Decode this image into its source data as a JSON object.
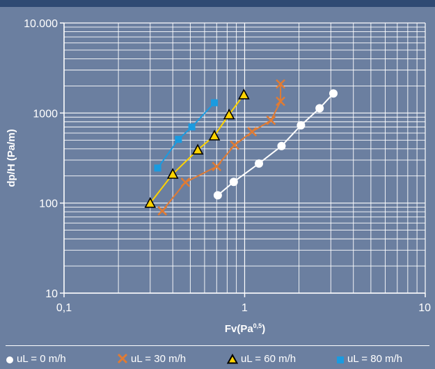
{
  "chart_data": {
    "type": "line",
    "xscale": "log",
    "yscale": "log",
    "xlim": [
      0.1,
      10
    ],
    "ylim": [
      10,
      10000
    ],
    "x_ticks": [
      {
        "value": 0.1,
        "label": "0,1"
      },
      {
        "value": 1,
        "label": "1"
      },
      {
        "value": 10,
        "label": "10"
      }
    ],
    "y_ticks": [
      {
        "value": 10,
        "label": "10"
      },
      {
        "value": 100,
        "label": "100"
      },
      {
        "value": 1000,
        "label": "1000"
      },
      {
        "value": 10000,
        "label": "10.000"
      }
    ],
    "xlabel": "Fv(Pa",
    "xlabel_sup": "0,5",
    "xlabel_end": ")",
    "ylabel": "dp/H (Pa/m)",
    "grid": true,
    "legend_position": "bottom",
    "series": [
      {
        "name": "uL = 0 m/h",
        "marker": "circle",
        "color": "#ffffff",
        "x": [
          0.71,
          0.87,
          1.2,
          1.6,
          2.05,
          2.6,
          3.1
        ],
        "y": [
          122,
          172,
          275,
          430,
          730,
          1130,
          1650
        ]
      },
      {
        "name": "uL = 30 m/h",
        "marker": "x",
        "color": "#e07b33",
        "x": [
          0.35,
          0.47,
          0.7,
          0.88,
          1.1,
          1.4,
          1.58,
          1.58
        ],
        "y": [
          82,
          170,
          255,
          440,
          620,
          830,
          1350,
          2100
        ]
      },
      {
        "name": "uL = 60 m/h",
        "marker": "triangle",
        "color": "#ffd300",
        "x": [
          0.3,
          0.4,
          0.55,
          0.68,
          0.82,
          0.99
        ],
        "y": [
          100,
          210,
          390,
          560,
          960,
          1600
        ]
      },
      {
        "name": "uL = 80 m/h",
        "marker": "square",
        "color": "#1a9be0",
        "x": [
          0.33,
          0.43,
          0.51,
          0.68
        ],
        "y": [
          245,
          510,
          700,
          1300
        ]
      }
    ]
  },
  "legend": {
    "items": [
      {
        "label": "uL = 0 m/h",
        "icon": "circle-icon"
      },
      {
        "label": "uL = 30 m/h",
        "icon": "cross-icon"
      },
      {
        "label": "uL = 60 m/h",
        "icon": "triangle-icon"
      },
      {
        "label": "uL = 80 m/h",
        "icon": "square-icon"
      }
    ]
  }
}
